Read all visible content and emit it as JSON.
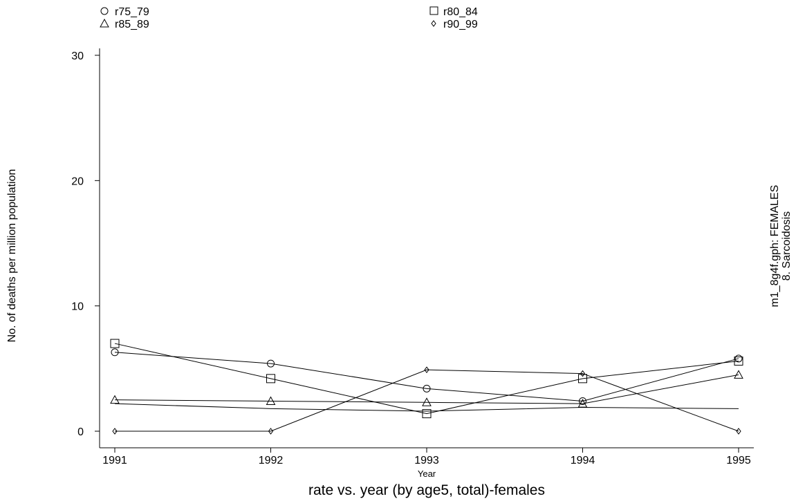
{
  "chart_data": {
    "type": "line",
    "title": "rate vs. year (by age5, total)-females",
    "xlabel": "Year",
    "ylabel": "No. of deaths per million population",
    "side_label_1": "m1_8g4f.gph: FEMALES",
    "side_label_2": "8.  Sarcoidosis",
    "x": [
      1991,
      1992,
      1993,
      1994,
      1995
    ],
    "xticks": [
      "1991",
      "1992",
      "1993",
      "1994",
      "1995"
    ],
    "yticks": [
      "0",
      "10",
      "20",
      "30"
    ],
    "ylim": [
      0,
      30
    ],
    "legend_position": "top",
    "series": [
      {
        "name": "r75_79",
        "marker": "circle",
        "values": [
          6.3,
          5.4,
          3.4,
          2.4,
          5.8
        ]
      },
      {
        "name": "r80_84",
        "marker": "square",
        "values": [
          7.0,
          4.2,
          1.4,
          4.2,
          5.6
        ]
      },
      {
        "name": "r85_89",
        "marker": "triangle",
        "values": [
          2.5,
          2.4,
          2.3,
          2.2,
          4.5
        ]
      },
      {
        "name": "r90_99",
        "marker": "diamond",
        "values": [
          0.0,
          0.0,
          4.9,
          4.6,
          0.0
        ]
      }
    ],
    "total_line": {
      "values": [
        2.2,
        1.8,
        1.6,
        1.9,
        1.8
      ]
    }
  }
}
